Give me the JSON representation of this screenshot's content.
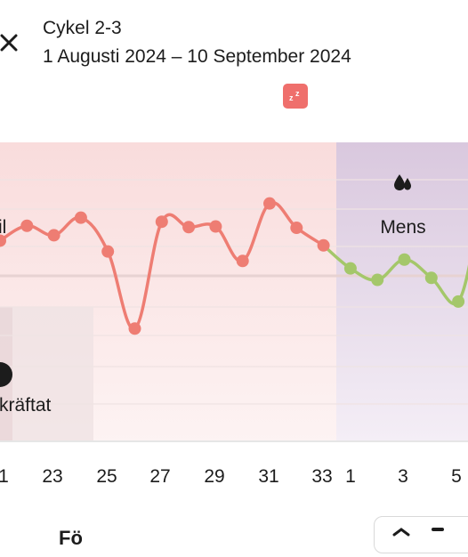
{
  "header": {
    "title": "Cykel 2-3",
    "date_range": "1 Augusti 2024 – 10 September 2024"
  },
  "icons": {
    "close": "close-icon",
    "sleep": "sleep-zz-icon",
    "menstruation": "blood-drops-icon",
    "confirmed": "info-dot-icon"
  },
  "colors": {
    "pre_line": "#ee7d73",
    "post_line": "#a4c76a",
    "menstruation_band": "#dccbe0",
    "sleep_badge": "#ef6f6c"
  },
  "chart": {
    "left_label_partial": "il",
    "menstruation_label": "Mens",
    "confirmed_label_partial": "kräftat"
  },
  "chart_data": {
    "type": "line",
    "x_tick_labels": [
      "1",
      "23",
      "25",
      "27",
      "29",
      "31",
      "33",
      "1",
      "3",
      "5"
    ],
    "series": [
      {
        "values": [
          {
            "x": 21,
            "y": 0.52
          },
          {
            "x": 22,
            "y": 0.74
          },
          {
            "x": 23,
            "y": 0.6
          },
          {
            "x": 24,
            "y": 0.86
          },
          {
            "x": 25,
            "y": 0.36
          },
          {
            "x": 26,
            "y": -0.78
          },
          {
            "x": 27,
            "y": 0.8
          },
          {
            "x": 28,
            "y": 0.72
          },
          {
            "x": 29,
            "y": 0.73
          },
          {
            "x": 30,
            "y": 0.22
          },
          {
            "x": 31,
            "y": 1.07
          },
          {
            "x": 32,
            "y": 0.71
          },
          {
            "x": 33,
            "y": 0.45
          }
        ]
      },
      {
        "values": [
          {
            "x": 33,
            "y": 0.45
          },
          {
            "x": 34,
            "y": 0.11
          },
          {
            "x": 35,
            "y": -0.06
          },
          {
            "x": 36,
            "y": 0.24
          },
          {
            "x": 37,
            "y": -0.03
          },
          {
            "x": 38,
            "y": -0.38
          }
        ]
      }
    ]
  },
  "bottom": {
    "label_partial": "Fö"
  }
}
